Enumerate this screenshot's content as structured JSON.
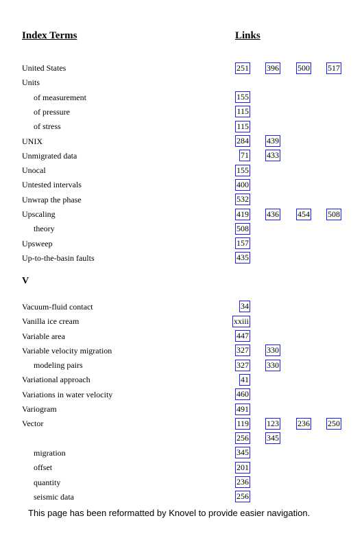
{
  "header": {
    "terms": "Index Terms",
    "links": "Links"
  },
  "groups": [
    {
      "entries": [
        {
          "term": "United States",
          "indent": 0,
          "links": [
            "251",
            "396",
            "500",
            "517"
          ]
        },
        {
          "term": "Units",
          "indent": 0,
          "links": []
        },
        {
          "term": "of measurement",
          "indent": 1,
          "links": [
            "155"
          ]
        },
        {
          "term": "of pressure",
          "indent": 1,
          "links": [
            "115"
          ]
        },
        {
          "term": "of stress",
          "indent": 1,
          "links": [
            "115"
          ]
        },
        {
          "term": "UNIX",
          "indent": 0,
          "links": [
            "284",
            "439"
          ]
        },
        {
          "term": "Unmigrated data",
          "indent": 0,
          "links": [
            "71",
            "433"
          ]
        },
        {
          "term": "Unocal",
          "indent": 0,
          "links": [
            "155"
          ]
        },
        {
          "term": "Untested intervals",
          "indent": 0,
          "links": [
            "400"
          ]
        },
        {
          "term": "Unwrap the phase",
          "indent": 0,
          "links": [
            "532"
          ]
        },
        {
          "term": "Upscaling",
          "indent": 0,
          "links": [
            "419",
            "436",
            "454",
            "508"
          ]
        },
        {
          "term": "theory",
          "indent": 1,
          "links": [
            "508"
          ]
        },
        {
          "term": "Upsweep",
          "indent": 0,
          "links": [
            "157"
          ]
        },
        {
          "term": "Up-to-the-basin faults",
          "indent": 0,
          "links": [
            "435"
          ]
        }
      ]
    },
    {
      "heading": "V",
      "entries": [
        {
          "term": "Vacuum-fluid contact",
          "indent": 0,
          "links": [
            "34"
          ]
        },
        {
          "term": "Vanilla ice cream",
          "indent": 0,
          "links": [
            "xxiii"
          ]
        },
        {
          "term": "Variable area",
          "indent": 0,
          "links": [
            "447"
          ]
        },
        {
          "term": "Variable velocity migration",
          "indent": 0,
          "links": [
            "327",
            "330"
          ]
        },
        {
          "term": "modeling pairs",
          "indent": 1,
          "links": [
            "327",
            "330"
          ]
        },
        {
          "term": "Variational approach",
          "indent": 0,
          "links": [
            "41"
          ]
        },
        {
          "term": "Variations in water velocity",
          "indent": 0,
          "links": [
            "460"
          ]
        },
        {
          "term": "Variogram",
          "indent": 0,
          "links": [
            "491"
          ]
        },
        {
          "term": "Vector",
          "indent": 0,
          "links": [
            "119",
            "123",
            "236",
            "250",
            "256",
            "345"
          ]
        },
        {
          "term": "migration",
          "indent": 1,
          "links": [
            "345"
          ]
        },
        {
          "term": "offset",
          "indent": 1,
          "links": [
            "201"
          ]
        },
        {
          "term": "quantity",
          "indent": 1,
          "links": [
            "236"
          ]
        },
        {
          "term": "seismic data",
          "indent": 1,
          "links": [
            "256"
          ]
        }
      ]
    }
  ],
  "footer": "This page has been reformatted by Knovel to provide easier navigation."
}
